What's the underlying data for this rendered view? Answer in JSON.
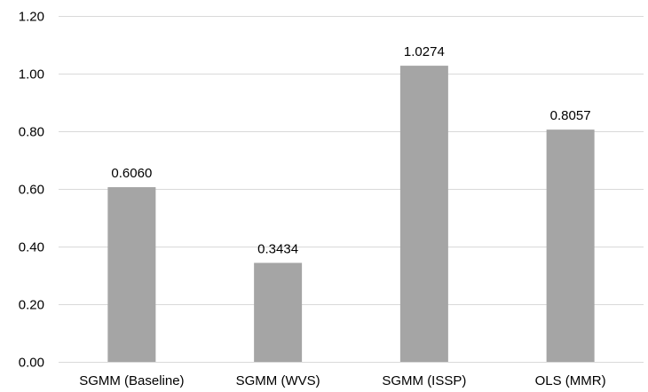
{
  "chart_data": {
    "type": "bar",
    "categories": [
      "SGMM (Baseline)",
      "SGMM (WVS)",
      "SGMM (ISSP)",
      "OLS (MMR)"
    ],
    "values": [
      0.606,
      0.3434,
      1.0274,
      0.8057
    ],
    "value_labels": [
      "0.6060",
      "0.3434",
      "1.0274",
      "0.8057"
    ],
    "y_ticks": [
      "0.00",
      "0.20",
      "0.40",
      "0.60",
      "0.80",
      "1.00",
      "1.20"
    ],
    "ylim": [
      0,
      1.2
    ],
    "grid": true,
    "bar_color": "#a5a5a5",
    "grid_color": "#d9d9d9"
  }
}
